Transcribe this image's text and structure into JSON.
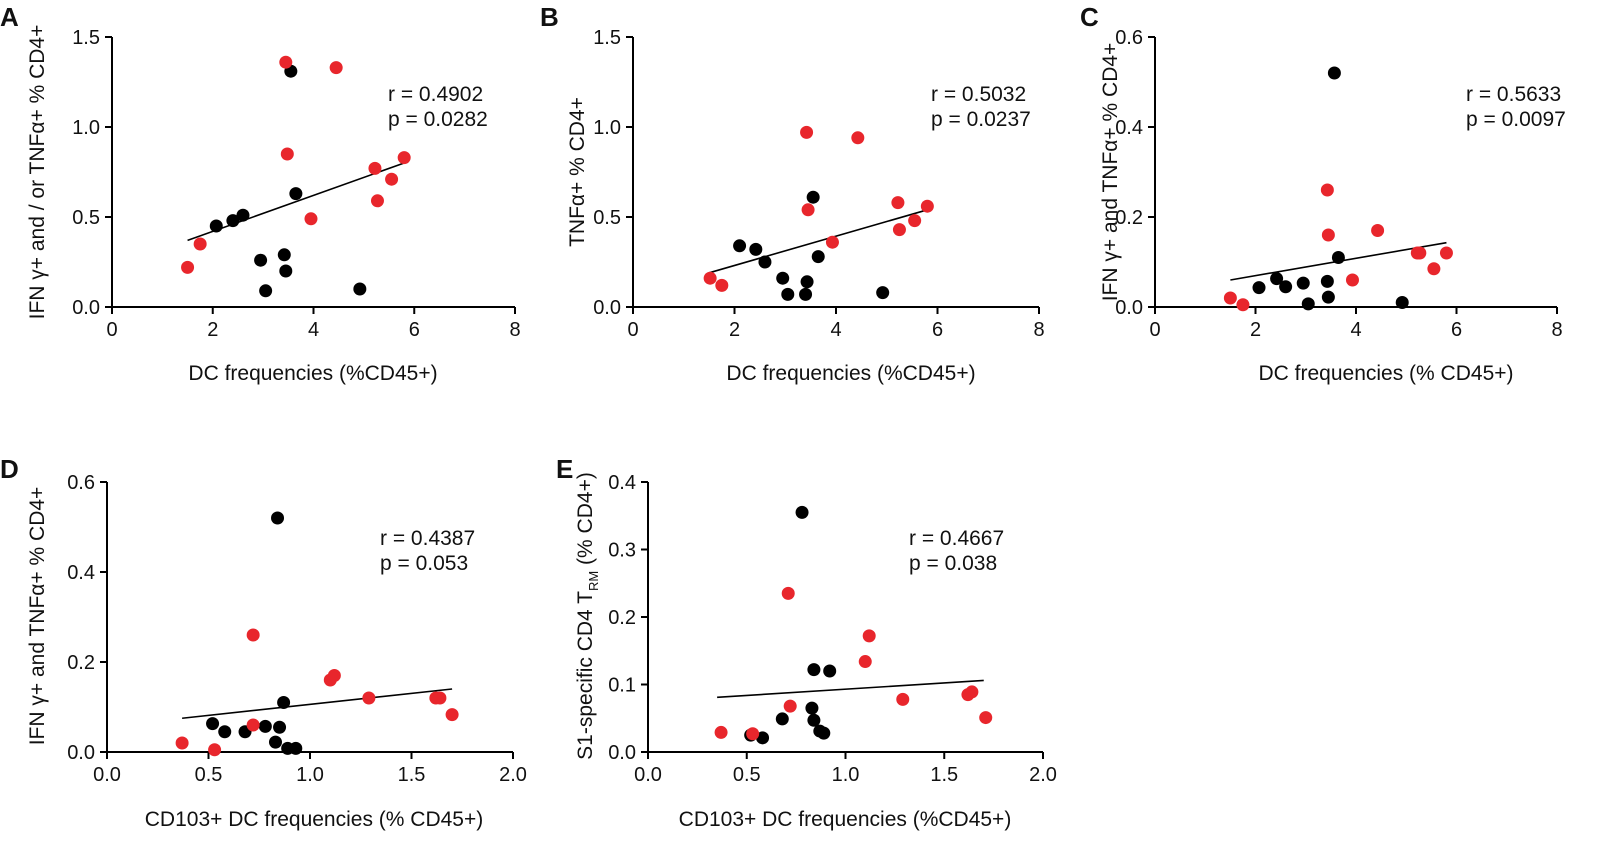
{
  "figure": {
    "colors": {
      "group_a": "#000000",
      "group_b": "#e8262c",
      "axis": "#000000"
    },
    "panels": [
      {
        "letter": "A",
        "xlabel": "DC frequencies (%CD45+)",
        "ylabel": "IFN γ+ and / or TNFα+  % CD4+",
        "r_text": "r = 0.4902",
        "p_text": "p = 0.0282"
      },
      {
        "letter": "B",
        "xlabel": "DC frequencies (%CD45+)",
        "ylabel": "TNFα+  % CD4+",
        "r_text": "r = 0.5032",
        "p_text": "p = 0.0237"
      },
      {
        "letter": "C",
        "xlabel": "DC frequencies (% CD45+)",
        "ylabel": "IFN γ+ and TNFα+  % CD4+",
        "r_text": "r = 0.5633",
        "p_text": "p = 0.0097"
      },
      {
        "letter": "D",
        "xlabel": "CD103+ DC frequencies (% CD45+)",
        "ylabel": "IFN γ+ and TNFα+  % CD4+",
        "r_text": "r = 0.4387",
        "p_text": "p = 0.053"
      },
      {
        "letter": "E",
        "xlabel": "CD103+ DC frequencies (%CD45+)",
        "ylabel_main": "S1-specific CD4 T",
        "ylabel_sub": "RM",
        "ylabel_tail": " (% CD4+)",
        "r_text": "r = 0.4667",
        "p_text": "p = 0.038"
      }
    ]
  },
  "chart_data": [
    {
      "type": "scatter",
      "panel": "A",
      "xlabel": "DC frequencies (%CD45+)",
      "ylabel": "IFN γ+ and / or TNFα+  % CD4+",
      "xlim": [
        0,
        8
      ],
      "ylim": [
        0,
        1.5
      ],
      "xticks": [
        0,
        2,
        4,
        6,
        8
      ],
      "xtick_labels": [
        "0",
        "2",
        "4",
        "6",
        "8"
      ],
      "yticks": [
        0,
        0.5,
        1,
        1.5
      ],
      "ytick_labels": [
        "0.0",
        "0.5",
        "1.0",
        "1.5"
      ],
      "annotation": {
        "r": 0.4902,
        "p": 0.0282
      },
      "trendline": {
        "x": [
          1.5,
          5.8
        ],
        "y": [
          0.37,
          0.8
        ]
      },
      "series": [
        {
          "name": "group_a",
          "color": "#000000",
          "x": [
            2.07,
            2.4,
            2.6,
            2.95,
            3.05,
            3.42,
            3.45,
            3.55,
            3.65,
            4.92
          ],
          "y": [
            0.45,
            0.48,
            0.51,
            0.26,
            0.09,
            0.29,
            0.2,
            1.31,
            0.63,
            0.1
          ]
        },
        {
          "name": "group_b",
          "color": "#e8262c",
          "x": [
            1.5,
            1.75,
            3.45,
            3.48,
            3.95,
            4.45,
            5.22,
            5.27,
            5.55,
            5.8
          ],
          "y": [
            0.22,
            0.35,
            1.36,
            0.85,
            0.49,
            1.33,
            0.77,
            0.59,
            0.71,
            0.83
          ]
        }
      ]
    },
    {
      "type": "scatter",
      "panel": "B",
      "xlabel": "DC frequencies (%CD45+)",
      "ylabel": "TNFα+  % CD4+",
      "xlim": [
        0,
        8
      ],
      "ylim": [
        0,
        1.5
      ],
      "xticks": [
        0,
        2,
        4,
        6,
        8
      ],
      "xtick_labels": [
        "0",
        "2",
        "4",
        "6",
        "8"
      ],
      "yticks": [
        0,
        0.5,
        1,
        1.5
      ],
      "ytick_labels": [
        "0.0",
        "0.5",
        "1.0",
        "1.5"
      ],
      "annotation": {
        "r": 0.5032,
        "p": 0.0237
      },
      "trendline": {
        "x": [
          1.5,
          5.8
        ],
        "y": [
          0.19,
          0.54
        ]
      },
      "series": [
        {
          "name": "group_a",
          "color": "#000000",
          "x": [
            2.1,
            2.42,
            2.6,
            2.95,
            3.05,
            3.4,
            3.43,
            3.55,
            3.65,
            4.92
          ],
          "y": [
            0.34,
            0.32,
            0.25,
            0.16,
            0.07,
            0.07,
            0.14,
            0.61,
            0.28,
            0.08
          ]
        },
        {
          "name": "group_b",
          "color": "#e8262c",
          "x": [
            1.52,
            1.75,
            3.42,
            3.45,
            3.93,
            4.43,
            5.22,
            5.25,
            5.55,
            5.8
          ],
          "y": [
            0.16,
            0.12,
            0.97,
            0.54,
            0.36,
            0.94,
            0.58,
            0.43,
            0.48,
            0.56
          ]
        }
      ]
    },
    {
      "type": "scatter",
      "panel": "C",
      "xlabel": "DC frequencies (% CD45+)",
      "ylabel": "IFN γ+ and TNFα+  % CD4+",
      "xlim": [
        0,
        8
      ],
      "ylim": [
        0,
        0.6
      ],
      "xticks": [
        0,
        2,
        4,
        6,
        8
      ],
      "xtick_labels": [
        "0",
        "2",
        "4",
        "6",
        "8"
      ],
      "yticks": [
        0,
        0.2,
        0.4,
        0.6
      ],
      "ytick_labels": [
        "0.0",
        "0.2",
        "0.4",
        "0.6"
      ],
      "annotation": {
        "r": 0.5633,
        "p": 0.0097
      },
      "trendline": {
        "x": [
          1.5,
          5.8
        ],
        "y": [
          0.06,
          0.143
        ]
      },
      "series": [
        {
          "name": "group_a",
          "color": "#000000",
          "x": [
            2.07,
            2.42,
            2.6,
            2.95,
            3.05,
            3.43,
            3.45,
            3.57,
            3.65,
            4.92
          ],
          "y": [
            0.043,
            0.063,
            0.045,
            0.053,
            0.007,
            0.057,
            0.022,
            0.52,
            0.11,
            0.01
          ]
        },
        {
          "name": "group_b",
          "color": "#e8262c",
          "x": [
            1.5,
            1.75,
            3.43,
            3.45,
            3.93,
            4.43,
            5.22,
            5.27,
            5.55,
            5.8
          ],
          "y": [
            0.02,
            0.005,
            0.26,
            0.16,
            0.06,
            0.17,
            0.12,
            0.12,
            0.085,
            0.12
          ]
        }
      ]
    },
    {
      "type": "scatter",
      "panel": "D",
      "xlabel": "CD103+ DC frequencies (% CD45+)",
      "ylabel": "IFN γ+ and TNFα+  % CD4+",
      "xlim": [
        0,
        2
      ],
      "ylim": [
        0,
        0.6
      ],
      "xticks": [
        0,
        0.5,
        1,
        1.5,
        2
      ],
      "xtick_labels": [
        "0.0",
        "0.5",
        "1.0",
        "1.5",
        "2.0"
      ],
      "yticks": [
        0,
        0.2,
        0.4,
        0.6
      ],
      "ytick_labels": [
        "0.0",
        "0.2",
        "0.4",
        "0.6"
      ],
      "annotation": {
        "r": 0.4387,
        "p": 0.053
      },
      "trendline": {
        "x": [
          0.37,
          1.7
        ],
        "y": [
          0.075,
          0.14
        ]
      },
      "series": [
        {
          "name": "group_a",
          "color": "#000000",
          "x": [
            0.52,
            0.58,
            0.68,
            0.78,
            0.83,
            0.84,
            0.85,
            0.87,
            0.89,
            0.93
          ],
          "y": [
            0.063,
            0.045,
            0.045,
            0.057,
            0.022,
            0.52,
            0.055,
            0.11,
            0.008,
            0.008
          ]
        },
        {
          "name": "group_b",
          "color": "#e8262c",
          "x": [
            0.37,
            0.53,
            0.72,
            0.72,
            1.1,
            1.12,
            1.29,
            1.62,
            1.64,
            1.7
          ],
          "y": [
            0.02,
            0.005,
            0.26,
            0.06,
            0.16,
            0.17,
            0.12,
            0.12,
            0.12,
            0.083
          ]
        }
      ]
    },
    {
      "type": "scatter",
      "panel": "E",
      "xlabel": "CD103+ DC frequencies (%CD45+)",
      "ylabel": "S1-specific CD4 TRM (% CD4+)",
      "xlim": [
        0,
        2
      ],
      "ylim": [
        0,
        0.4
      ],
      "xticks": [
        0,
        0.5,
        1,
        1.5,
        2
      ],
      "xtick_labels": [
        "0.0",
        "0.5",
        "1.0",
        "1.5",
        "2.0"
      ],
      "yticks": [
        0,
        0.1,
        0.2,
        0.3,
        0.4
      ],
      "ytick_labels": [
        "0.0",
        "0.1",
        "0.2",
        "0.3",
        "0.4"
      ],
      "annotation": {
        "r": 0.4667,
        "p": 0.038
      },
      "trendline": {
        "x": [
          0.35,
          1.7
        ],
        "y": [
          0.081,
          0.106
        ]
      },
      "series": [
        {
          "name": "group_a",
          "color": "#000000",
          "x": [
            0.52,
            0.58,
            0.68,
            0.78,
            0.83,
            0.84,
            0.84,
            0.87,
            0.89,
            0.92
          ],
          "y": [
            0.025,
            0.021,
            0.049,
            0.355,
            0.065,
            0.122,
            0.047,
            0.031,
            0.028,
            0.12
          ]
        },
        {
          "name": "group_b",
          "color": "#e8262c",
          "x": [
            0.37,
            0.53,
            0.71,
            0.72,
            1.1,
            1.12,
            1.29,
            1.62,
            1.64,
            1.71
          ],
          "y": [
            0.029,
            0.027,
            0.235,
            0.068,
            0.134,
            0.172,
            0.078,
            0.085,
            0.089,
            0.051
          ]
        }
      ]
    }
  ]
}
